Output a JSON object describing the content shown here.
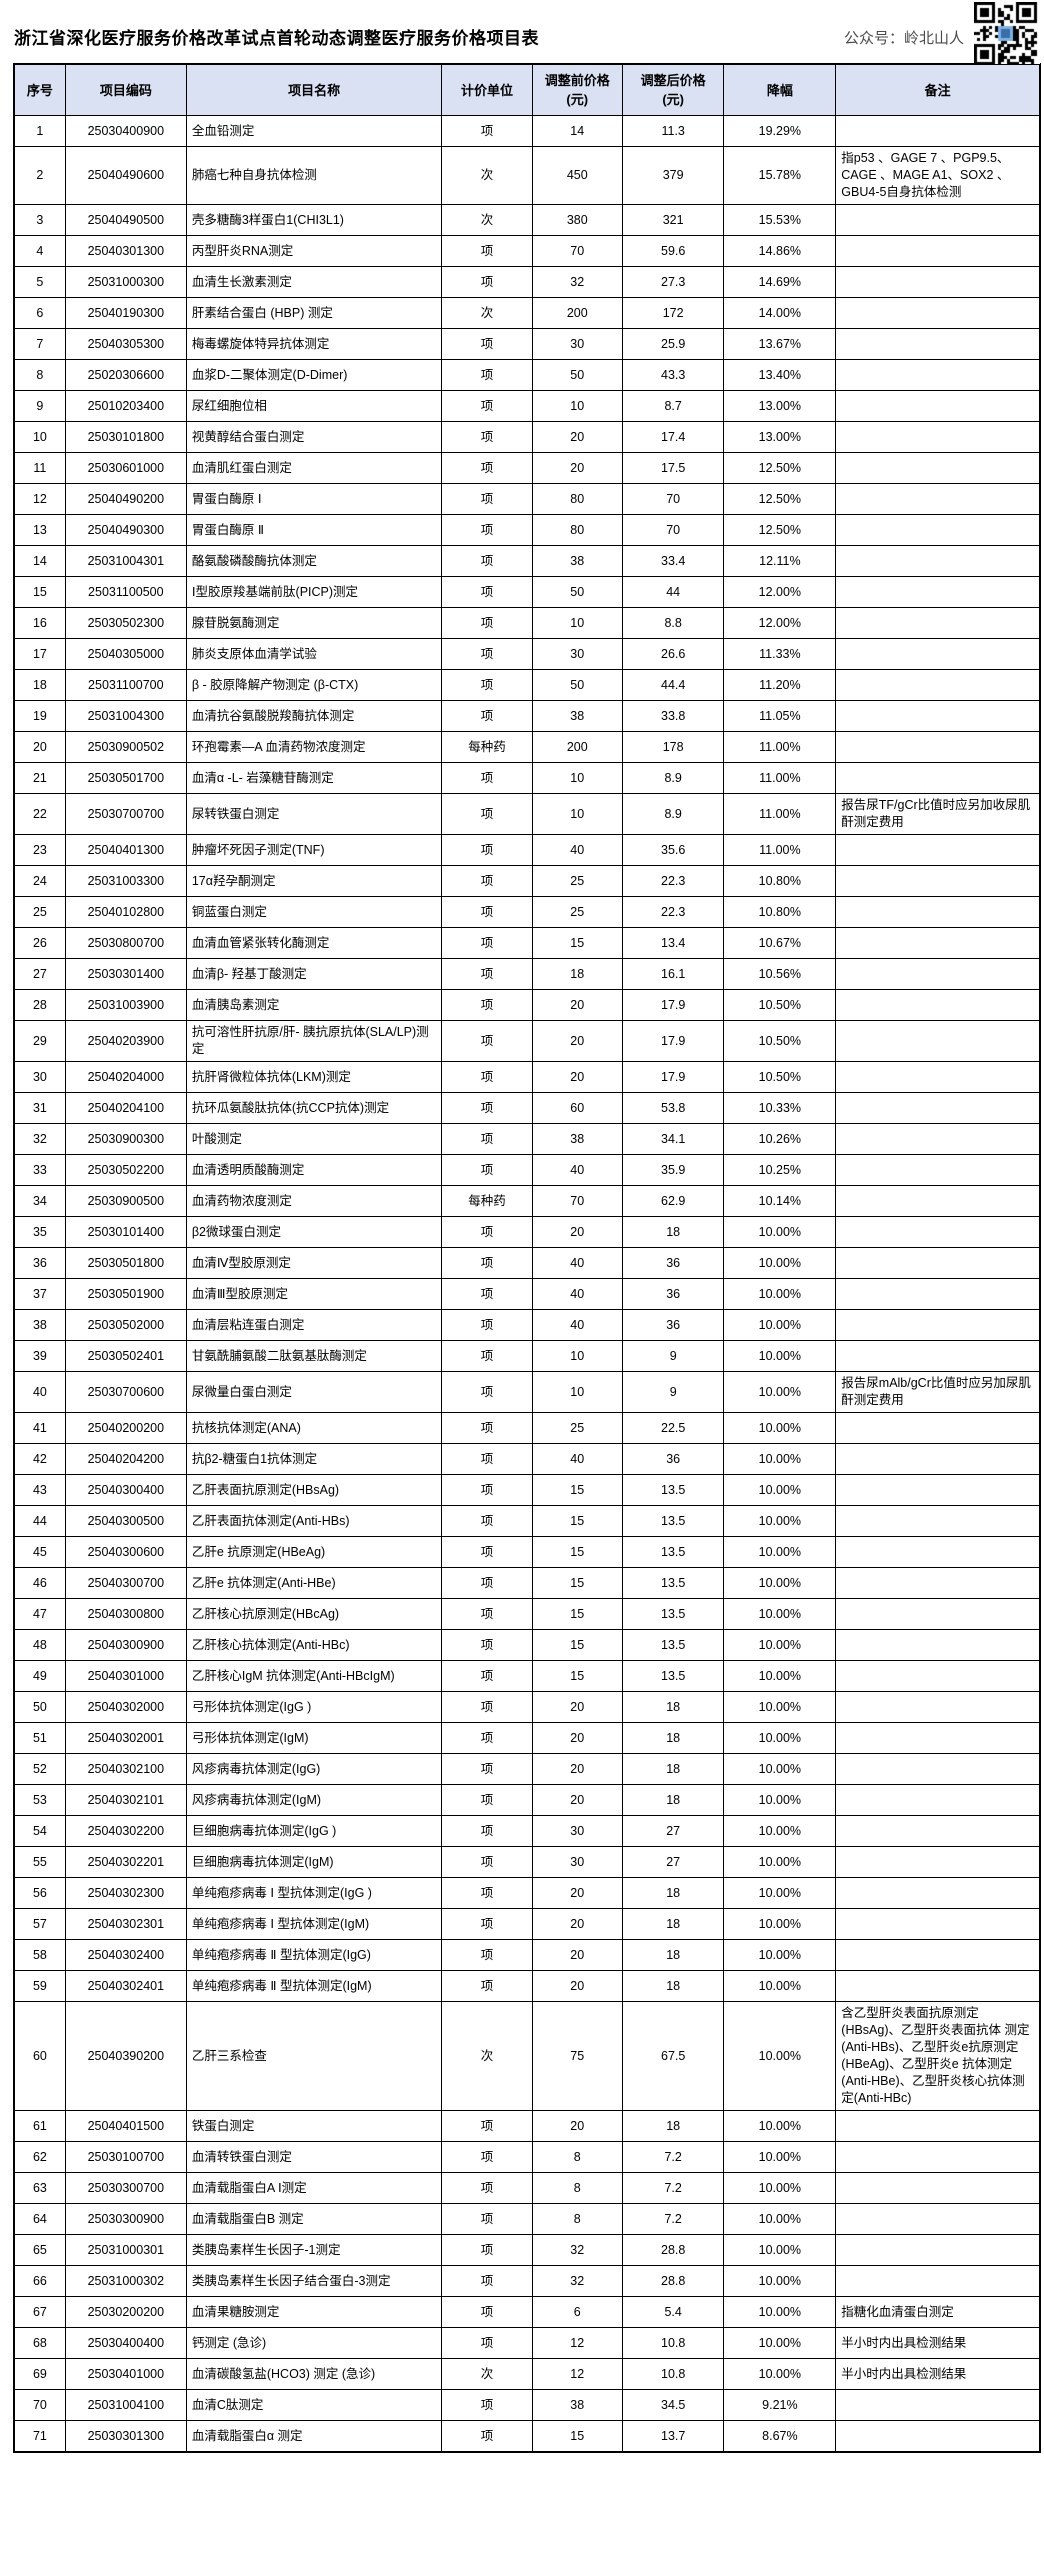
{
  "page": {
    "title": "浙江省深化医疗服务价格改革试点首轮动态调整医疗服务价格项目表",
    "watermark_label": "公众号：岭北山人",
    "qr_icon": "qr-code"
  },
  "colors": {
    "header_bg": "#d9e1f2",
    "border": "#000000",
    "text": "#000000",
    "watermark_text": "#4a4a4a"
  },
  "table": {
    "headers": [
      "序号",
      "项目编码",
      "项目名称",
      "计价单位",
      "调整前价格\n(元)",
      "调整后价格\n(元)",
      "降幅",
      "备注"
    ],
    "fields": [
      "no",
      "code",
      "name",
      "unit",
      "before",
      "after",
      "drop",
      "note"
    ],
    "rows": [
      {
        "no": "1",
        "code": "25030400900",
        "name": "全血铅测定",
        "unit": "项",
        "before": "14",
        "after": "11.3",
        "drop": "19.29%",
        "note": ""
      },
      {
        "no": "2",
        "code": "25040490600",
        "name": "肺癌七种自身抗体检测",
        "unit": "次",
        "before": "450",
        "after": "379",
        "drop": "15.78%",
        "note": "指p53 、GAGE 7 、PGP9.5、CAGE 、MAGE A1、SOX2 、GBU4-5自身抗体检测"
      },
      {
        "no": "3",
        "code": "25040490500",
        "name": "壳多糖酶3样蛋白1(CHI3L1)",
        "unit": "次",
        "before": "380",
        "after": "321",
        "drop": "15.53%",
        "note": ""
      },
      {
        "no": "4",
        "code": "25040301300",
        "name": "丙型肝炎RNA测定",
        "unit": "项",
        "before": "70",
        "after": "59.6",
        "drop": "14.86%",
        "note": ""
      },
      {
        "no": "5",
        "code": "25031000300",
        "name": "血清生长激素测定",
        "unit": "项",
        "before": "32",
        "after": "27.3",
        "drop": "14.69%",
        "note": ""
      },
      {
        "no": "6",
        "code": "25040190300",
        "name": "肝素结合蛋白 (HBP) 测定",
        "unit": "次",
        "before": "200",
        "after": "172",
        "drop": "14.00%",
        "note": ""
      },
      {
        "no": "7",
        "code": "25040305300",
        "name": "梅毒螺旋体特异抗体测定",
        "unit": "项",
        "before": "30",
        "after": "25.9",
        "drop": "13.67%",
        "note": ""
      },
      {
        "no": "8",
        "code": "25020306600",
        "name": "血浆D-二聚体测定(D-Dimer)",
        "unit": "项",
        "before": "50",
        "after": "43.3",
        "drop": "13.40%",
        "note": ""
      },
      {
        "no": "9",
        "code": "25010203400",
        "name": "尿红细胞位相",
        "unit": "项",
        "before": "10",
        "after": "8.7",
        "drop": "13.00%",
        "note": ""
      },
      {
        "no": "10",
        "code": "25030101800",
        "name": "视黄醇结合蛋白测定",
        "unit": "项",
        "before": "20",
        "after": "17.4",
        "drop": "13.00%",
        "note": ""
      },
      {
        "no": "11",
        "code": "25030601000",
        "name": "血清肌红蛋白测定",
        "unit": "项",
        "before": "20",
        "after": "17.5",
        "drop": "12.50%",
        "note": ""
      },
      {
        "no": "12",
        "code": "25040490200",
        "name": "胃蛋白酶原 Ⅰ",
        "unit": "项",
        "before": "80",
        "after": "70",
        "drop": "12.50%",
        "note": ""
      },
      {
        "no": "13",
        "code": "25040490300",
        "name": "胃蛋白酶原 Ⅱ",
        "unit": "项",
        "before": "80",
        "after": "70",
        "drop": "12.50%",
        "note": ""
      },
      {
        "no": "14",
        "code": "25031004301",
        "name": "酪氨酸磷酸酶抗体测定",
        "unit": "项",
        "before": "38",
        "after": "33.4",
        "drop": "12.11%",
        "note": ""
      },
      {
        "no": "15",
        "code": "25031100500",
        "name": "Ⅰ型胶原羧基端前肽(PICP)测定",
        "unit": "项",
        "before": "50",
        "after": "44",
        "drop": "12.00%",
        "note": ""
      },
      {
        "no": "16",
        "code": "25030502300",
        "name": "腺苷脱氨酶测定",
        "unit": "项",
        "before": "10",
        "after": "8.8",
        "drop": "12.00%",
        "note": ""
      },
      {
        "no": "17",
        "code": "25040305000",
        "name": "肺炎支原体血清学试验",
        "unit": "项",
        "before": "30",
        "after": "26.6",
        "drop": "11.33%",
        "note": ""
      },
      {
        "no": "18",
        "code": "25031100700",
        "name": "β - 胶原降解产物测定 (β-CTX)",
        "unit": "项",
        "before": "50",
        "after": "44.4",
        "drop": "11.20%",
        "note": ""
      },
      {
        "no": "19",
        "code": "25031004300",
        "name": "血清抗谷氨酸脱羧酶抗体测定",
        "unit": "项",
        "before": "38",
        "after": "33.8",
        "drop": "11.05%",
        "note": ""
      },
      {
        "no": "20",
        "code": "25030900502",
        "name": "环孢霉素—A 血清药物浓度测定",
        "unit": "每种药",
        "before": "200",
        "after": "178",
        "drop": "11.00%",
        "note": ""
      },
      {
        "no": "21",
        "code": "25030501700",
        "name": "血清α -L- 岩藻糖苷酶测定",
        "unit": "项",
        "before": "10",
        "after": "8.9",
        "drop": "11.00%",
        "note": ""
      },
      {
        "no": "22",
        "code": "25030700700",
        "name": "尿转铁蛋白测定",
        "unit": "项",
        "before": "10",
        "after": "8.9",
        "drop": "11.00%",
        "note": "报告尿TF/gCr比值时应另加收尿肌酐测定费用"
      },
      {
        "no": "23",
        "code": "25040401300",
        "name": "肿瘤坏死因子测定(TNF)",
        "unit": "项",
        "before": "40",
        "after": "35.6",
        "drop": "11.00%",
        "note": ""
      },
      {
        "no": "24",
        "code": "25031003300",
        "name": "17α羟孕酮测定",
        "unit": "项",
        "before": "25",
        "after": "22.3",
        "drop": "10.80%",
        "note": ""
      },
      {
        "no": "25",
        "code": "25040102800",
        "name": "铜蓝蛋白测定",
        "unit": "项",
        "before": "25",
        "after": "22.3",
        "drop": "10.80%",
        "note": ""
      },
      {
        "no": "26",
        "code": "25030800700",
        "name": "血清血管紧张转化酶测定",
        "unit": "项",
        "before": "15",
        "after": "13.4",
        "drop": "10.67%",
        "note": ""
      },
      {
        "no": "27",
        "code": "25030301400",
        "name": "血清β- 羟基丁酸测定",
        "unit": "项",
        "before": "18",
        "after": "16.1",
        "drop": "10.56%",
        "note": ""
      },
      {
        "no": "28",
        "code": "25031003900",
        "name": "血清胰岛素测定",
        "unit": "项",
        "before": "20",
        "after": "17.9",
        "drop": "10.50%",
        "note": ""
      },
      {
        "no": "29",
        "code": "25040203900",
        "name": "抗可溶性肝抗原/肝- 胰抗原抗体(SLA/LP)测定",
        "unit": "项",
        "before": "20",
        "after": "17.9",
        "drop": "10.50%",
        "note": ""
      },
      {
        "no": "30",
        "code": "25040204000",
        "name": "抗肝肾微粒体抗体(LKM)测定",
        "unit": "项",
        "before": "20",
        "after": "17.9",
        "drop": "10.50%",
        "note": ""
      },
      {
        "no": "31",
        "code": "25040204100",
        "name": "抗环瓜氨酸肽抗体(抗CCP抗体)测定",
        "unit": "项",
        "before": "60",
        "after": "53.8",
        "drop": "10.33%",
        "note": ""
      },
      {
        "no": "32",
        "code": "25030900300",
        "name": "叶酸测定",
        "unit": "项",
        "before": "38",
        "after": "34.1",
        "drop": "10.26%",
        "note": ""
      },
      {
        "no": "33",
        "code": "25030502200",
        "name": "血清透明质酸酶测定",
        "unit": "项",
        "before": "40",
        "after": "35.9",
        "drop": "10.25%",
        "note": ""
      },
      {
        "no": "34",
        "code": "25030900500",
        "name": "血清药物浓度测定",
        "unit": "每种药",
        "before": "70",
        "after": "62.9",
        "drop": "10.14%",
        "note": ""
      },
      {
        "no": "35",
        "code": "25030101400",
        "name": "β2微球蛋白测定",
        "unit": "项",
        "before": "20",
        "after": "18",
        "drop": "10.00%",
        "note": ""
      },
      {
        "no": "36",
        "code": "25030501800",
        "name": "血清Ⅳ型胶原测定",
        "unit": "项",
        "before": "40",
        "after": "36",
        "drop": "10.00%",
        "note": ""
      },
      {
        "no": "37",
        "code": "25030501900",
        "name": "血清Ⅲ型胶原测定",
        "unit": "项",
        "before": "40",
        "after": "36",
        "drop": "10.00%",
        "note": ""
      },
      {
        "no": "38",
        "code": "25030502000",
        "name": "血清层粘连蛋白测定",
        "unit": "项",
        "before": "40",
        "after": "36",
        "drop": "10.00%",
        "note": ""
      },
      {
        "no": "39",
        "code": "25030502401",
        "name": "甘氨酰脯氨酸二肽氨基肽酶测定",
        "unit": "项",
        "before": "10",
        "after": "9",
        "drop": "10.00%",
        "note": ""
      },
      {
        "no": "40",
        "code": "25030700600",
        "name": "尿微量白蛋白测定",
        "unit": "项",
        "before": "10",
        "after": "9",
        "drop": "10.00%",
        "note": "报告尿mAlb/gCr比值时应另加尿肌酐测定费用"
      },
      {
        "no": "41",
        "code": "25040200200",
        "name": "抗核抗体测定(ANA)",
        "unit": "项",
        "before": "25",
        "after": "22.5",
        "drop": "10.00%",
        "note": ""
      },
      {
        "no": "42",
        "code": "25040204200",
        "name": "抗β2-糖蛋白1抗体测定",
        "unit": "项",
        "before": "40",
        "after": "36",
        "drop": "10.00%",
        "note": ""
      },
      {
        "no": "43",
        "code": "25040300400",
        "name": "乙肝表面抗原测定(HBsAg)",
        "unit": "项",
        "before": "15",
        "after": "13.5",
        "drop": "10.00%",
        "note": ""
      },
      {
        "no": "44",
        "code": "25040300500",
        "name": "乙肝表面抗体测定(Anti-HBs)",
        "unit": "项",
        "before": "15",
        "after": "13.5",
        "drop": "10.00%",
        "note": ""
      },
      {
        "no": "45",
        "code": "25040300600",
        "name": "乙肝e 抗原测定(HBeAg)",
        "unit": "项",
        "before": "15",
        "after": "13.5",
        "drop": "10.00%",
        "note": ""
      },
      {
        "no": "46",
        "code": "25040300700",
        "name": "乙肝e 抗体测定(Anti-HBe)",
        "unit": "项",
        "before": "15",
        "after": "13.5",
        "drop": "10.00%",
        "note": ""
      },
      {
        "no": "47",
        "code": "25040300800",
        "name": "乙肝核心抗原测定(HBcAg)",
        "unit": "项",
        "before": "15",
        "after": "13.5",
        "drop": "10.00%",
        "note": ""
      },
      {
        "no": "48",
        "code": "25040300900",
        "name": "乙肝核心抗体测定(Anti-HBc)",
        "unit": "项",
        "before": "15",
        "after": "13.5",
        "drop": "10.00%",
        "note": ""
      },
      {
        "no": "49",
        "code": "25040301000",
        "name": "乙肝核心IgM 抗体测定(Anti-HBcIgM)",
        "unit": "项",
        "before": "15",
        "after": "13.5",
        "drop": "10.00%",
        "note": ""
      },
      {
        "no": "50",
        "code": "25040302000",
        "name": "弓形体抗体测定(IgG )",
        "unit": "项",
        "before": "20",
        "after": "18",
        "drop": "10.00%",
        "note": ""
      },
      {
        "no": "51",
        "code": "25040302001",
        "name": "弓形体抗体测定(IgM)",
        "unit": "项",
        "before": "20",
        "after": "18",
        "drop": "10.00%",
        "note": ""
      },
      {
        "no": "52",
        "code": "25040302100",
        "name": "风疹病毒抗体测定(IgG)",
        "unit": "项",
        "before": "20",
        "after": "18",
        "drop": "10.00%",
        "note": ""
      },
      {
        "no": "53",
        "code": "25040302101",
        "name": "风疹病毒抗体测定(IgM)",
        "unit": "项",
        "before": "20",
        "after": "18",
        "drop": "10.00%",
        "note": ""
      },
      {
        "no": "54",
        "code": "25040302200",
        "name": "巨细胞病毒抗体测定(IgG )",
        "unit": "项",
        "before": "30",
        "after": "27",
        "drop": "10.00%",
        "note": ""
      },
      {
        "no": "55",
        "code": "25040302201",
        "name": "巨细胞病毒抗体测定(IgM)",
        "unit": "项",
        "before": "30",
        "after": "27",
        "drop": "10.00%",
        "note": ""
      },
      {
        "no": "56",
        "code": "25040302300",
        "name": "单纯疱疹病毒 Ⅰ 型抗体测定(IgG )",
        "unit": "项",
        "before": "20",
        "after": "18",
        "drop": "10.00%",
        "note": ""
      },
      {
        "no": "57",
        "code": "25040302301",
        "name": "单纯疱疹病毒 Ⅰ 型抗体测定(IgM)",
        "unit": "项",
        "before": "20",
        "after": "18",
        "drop": "10.00%",
        "note": ""
      },
      {
        "no": "58",
        "code": "25040302400",
        "name": "单纯疱疹病毒 Ⅱ 型抗体测定(IgG)",
        "unit": "项",
        "before": "20",
        "after": "18",
        "drop": "10.00%",
        "note": ""
      },
      {
        "no": "59",
        "code": "25040302401",
        "name": "单纯疱疹病毒 Ⅱ 型抗体测定(IgM)",
        "unit": "项",
        "before": "20",
        "after": "18",
        "drop": "10.00%",
        "note": ""
      },
      {
        "no": "60",
        "code": "25040390200",
        "name": "乙肝三系检查",
        "unit": "次",
        "before": "75",
        "after": "67.5",
        "drop": "10.00%",
        "note": "含乙型肝炎表面抗原测定(HBsAg)、乙型肝炎表面抗体 测定(Anti-HBs)、乙型肝炎e抗原测定(HBeAg)、乙型肝炎e 抗体测定(Anti-HBe)、乙型肝炎核心抗体测定(Anti-HBc)"
      },
      {
        "no": "61",
        "code": "25040401500",
        "name": "铁蛋白测定",
        "unit": "项",
        "before": "20",
        "after": "18",
        "drop": "10.00%",
        "note": ""
      },
      {
        "no": "62",
        "code": "25030100700",
        "name": "血清转铁蛋白测定",
        "unit": "项",
        "before": "8",
        "after": "7.2",
        "drop": "10.00%",
        "note": ""
      },
      {
        "no": "63",
        "code": "25030300700",
        "name": "血清载脂蛋白A Ⅰ测定",
        "unit": "项",
        "before": "8",
        "after": "7.2",
        "drop": "10.00%",
        "note": ""
      },
      {
        "no": "64",
        "code": "25030300900",
        "name": "血清载脂蛋白B 测定",
        "unit": "项",
        "before": "8",
        "after": "7.2",
        "drop": "10.00%",
        "note": ""
      },
      {
        "no": "65",
        "code": "25031000301",
        "name": "类胰岛素样生长因子-1测定",
        "unit": "项",
        "before": "32",
        "after": "28.8",
        "drop": "10.00%",
        "note": ""
      },
      {
        "no": "66",
        "code": "25031000302",
        "name": "类胰岛素样生长因子结合蛋白-3测定",
        "unit": "项",
        "before": "32",
        "after": "28.8",
        "drop": "10.00%",
        "note": ""
      },
      {
        "no": "67",
        "code": "25030200200",
        "name": "血清果糖胺测定",
        "unit": "项",
        "before": "6",
        "after": "5.4",
        "drop": "10.00%",
        "note": "指糖化血清蛋白测定"
      },
      {
        "no": "68",
        "code": "25030400400",
        "name": "钙测定 (急诊)",
        "unit": "项",
        "before": "12",
        "after": "10.8",
        "drop": "10.00%",
        "note": "半小时内出具检测结果"
      },
      {
        "no": "69",
        "code": "25030401000",
        "name": "血清碳酸氢盐(HCO3) 测定 (急诊)",
        "unit": "次",
        "before": "12",
        "after": "10.8",
        "drop": "10.00%",
        "note": "半小时内出具检测结果"
      },
      {
        "no": "70",
        "code": "25031004100",
        "name": "血清C肽测定",
        "unit": "项",
        "before": "38",
        "after": "34.5",
        "drop": "9.21%",
        "note": ""
      },
      {
        "no": "71",
        "code": "25030301300",
        "name": "血清载脂蛋白α 测定",
        "unit": "项",
        "before": "15",
        "after": "13.7",
        "drop": "8.67%",
        "note": ""
      }
    ]
  }
}
